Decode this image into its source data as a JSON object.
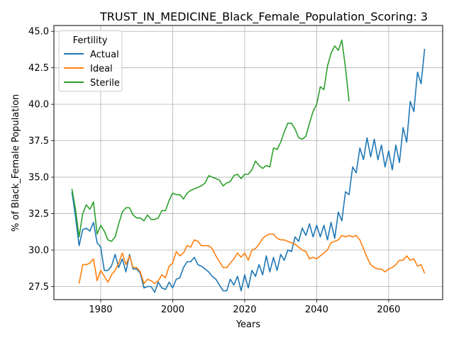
{
  "chart_data": {
    "type": "line",
    "title": "TRUST_IN_MEDICINE_Black_Female_Population_Scoring: 3",
    "xlabel": "Years",
    "ylabel": "% of Black_Female Population",
    "xlim": [
      1967,
      2075
    ],
    "ylim": [
      26.6,
      45.4
    ],
    "xticks": [
      1980,
      2000,
      2020,
      2040,
      2060
    ],
    "yticks": [
      27.5,
      30.0,
      32.5,
      35.0,
      37.5,
      40.0,
      42.5,
      45.0
    ],
    "ytick_labels": [
      "27.5",
      "30.0",
      "32.5",
      "35.0",
      "37.5",
      "40.0",
      "42.5",
      "45.0"
    ],
    "grid": true,
    "legend": {
      "title": "Fertility",
      "placement": "upper-left"
    },
    "series": [
      {
        "name": "Actual",
        "color": "#1f77b4",
        "x": [
          1972,
          1973,
          1974,
          1975,
          1976,
          1977,
          1978,
          1979,
          1980,
          1981,
          1982,
          1983,
          1984,
          1985,
          1986,
          1987,
          1988,
          1989,
          1990,
          1991,
          1992,
          1993,
          1994,
          1995,
          1996,
          1997,
          1998,
          1999,
          2000,
          2001,
          2002,
          2003,
          2004,
          2005,
          2006,
          2007,
          2008,
          2009,
          2010,
          2011,
          2012,
          2013,
          2014,
          2015,
          2016,
          2017,
          2018,
          2019,
          2020,
          2021,
          2022,
          2023,
          2024,
          2025,
          2026,
          2027,
          2028,
          2029,
          2030,
          2031,
          2032,
          2033,
          2034,
          2035,
          2036,
          2037,
          2038,
          2039,
          2040,
          2041,
          2042,
          2043,
          2044,
          2045,
          2046,
          2047,
          2048,
          2049,
          2050,
          2051,
          2052,
          2053,
          2054,
          2055,
          2056,
          2057,
          2058,
          2059,
          2060,
          2061,
          2062,
          2063,
          2064,
          2065,
          2066,
          2067,
          2068,
          2069,
          2070
        ],
        "y": [
          34.0,
          32.3,
          30.3,
          31.4,
          31.5,
          31.3,
          31.9,
          30.5,
          30.2,
          28.6,
          28.6,
          28.9,
          29.7,
          28.8,
          29.4,
          28.5,
          29.7,
          28.7,
          28.7,
          28.4,
          27.4,
          27.5,
          27.5,
          27.1,
          27.8,
          27.4,
          27.3,
          27.8,
          27.4,
          28.0,
          28.1,
          28.8,
          29.2,
          29.2,
          29.5,
          29.0,
          28.9,
          28.7,
          28.5,
          28.2,
          28.0,
          27.6,
          27.2,
          27.2,
          28.0,
          27.6,
          28.2,
          27.2,
          28.3,
          27.4,
          28.6,
          28.2,
          29.0,
          28.3,
          29.6,
          28.5,
          29.5,
          28.6,
          29.7,
          29.3,
          30.0,
          29.9,
          30.9,
          30.6,
          31.5,
          31.0,
          31.8,
          30.9,
          31.7,
          30.9,
          31.7,
          30.7,
          31.9,
          30.8,
          32.6,
          32.0,
          34.0,
          33.8,
          35.7,
          35.3,
          37.0,
          36.2,
          37.7,
          36.4,
          37.6,
          36.2,
          37.2,
          35.7,
          36.8,
          35.5,
          37.2,
          36.0,
          38.4,
          37.4,
          40.2,
          39.5,
          42.2,
          41.4,
          43.8
        ]
      },
      {
        "name": "Ideal",
        "color": "#ff7f0e",
        "x": [
          1974,
          1975,
          1976,
          1977,
          1978,
          1979,
          1980,
          1981,
          1982,
          1983,
          1984,
          1985,
          1986,
          1987,
          1988,
          1989,
          1990,
          1991,
          1992,
          1993,
          1994,
          1995,
          1996,
          1997,
          1998,
          1999,
          2000,
          2001,
          2002,
          2003,
          2004,
          2005,
          2006,
          2007,
          2008,
          2009,
          2010,
          2011,
          2012,
          2013,
          2014,
          2015,
          2016,
          2017,
          2018,
          2019,
          2020,
          2021,
          2022,
          2023,
          2024,
          2025,
          2026,
          2027,
          2028,
          2029,
          2030,
          2031,
          2032,
          2033,
          2034,
          2035,
          2036,
          2037,
          2038,
          2039,
          2040,
          2041,
          2042,
          2043,
          2044,
          2045,
          2046,
          2047,
          2048,
          2049,
          2050,
          2051,
          2052,
          2053,
          2054,
          2055,
          2056,
          2057,
          2058,
          2059,
          2060,
          2061,
          2062,
          2063,
          2064,
          2065,
          2066,
          2067,
          2068,
          2069,
          2070
        ],
        "y": [
          27.7,
          29.0,
          29.0,
          29.1,
          29.4,
          27.9,
          28.6,
          28.2,
          27.8,
          28.3,
          28.6,
          29.1,
          29.8,
          29.0,
          29.6,
          28.8,
          28.8,
          28.5,
          27.7,
          28.0,
          27.9,
          27.7,
          27.9,
          28.3,
          28.1,
          28.9,
          29.1,
          29.9,
          29.6,
          29.8,
          30.3,
          30.2,
          30.7,
          30.6,
          30.3,
          30.3,
          30.3,
          30.1,
          29.6,
          29.2,
          28.8,
          28.8,
          29.1,
          29.4,
          29.8,
          29.5,
          29.8,
          29.3,
          30.0,
          30.1,
          30.4,
          30.8,
          31.0,
          31.1,
          31.1,
          30.8,
          30.7,
          30.7,
          30.6,
          30.5,
          30.4,
          30.2,
          30.0,
          29.9,
          29.4,
          29.5,
          29.4,
          29.6,
          29.8,
          30.0,
          30.5,
          30.6,
          30.7,
          31.0,
          30.9,
          31.0,
          30.9,
          31.0,
          30.7,
          30.1,
          29.5,
          29.0,
          28.8,
          28.7,
          28.7,
          28.5,
          28.7,
          28.8,
          29.0,
          29.3,
          29.3,
          29.6,
          29.3,
          29.4,
          28.9,
          29.0,
          28.4
        ]
      },
      {
        "name": "Sterile",
        "color": "#2ca02c",
        "x": [
          1972,
          1973,
          1974,
          1975,
          1976,
          1977,
          1978,
          1979,
          1980,
          1981,
          1982,
          1983,
          1984,
          1985,
          1986,
          1987,
          1988,
          1989,
          1990,
          1991,
          1992,
          1993,
          1994,
          1995,
          1996,
          1997,
          1998,
          1999,
          2000,
          2001,
          2002,
          2003,
          2004,
          2005,
          2006,
          2007,
          2008,
          2009,
          2010,
          2011,
          2012,
          2013,
          2014,
          2015,
          2016,
          2017,
          2018,
          2019,
          2020,
          2021,
          2022,
          2023,
          2024,
          2025,
          2026,
          2027,
          2028,
          2029,
          2030,
          2031,
          2032,
          2033,
          2034,
          2035,
          2036,
          2037,
          2038,
          2039,
          2040,
          2041,
          2042,
          2043,
          2044,
          2045,
          2046,
          2047,
          2048,
          2049
        ],
        "y": [
          34.2,
          32.8,
          30.9,
          32.5,
          33.1,
          32.8,
          33.3,
          31.1,
          31.7,
          31.3,
          30.7,
          30.6,
          30.9,
          31.8,
          32.6,
          32.9,
          32.9,
          32.4,
          32.2,
          32.2,
          32.0,
          32.4,
          32.1,
          32.1,
          32.2,
          32.7,
          32.7,
          33.4,
          33.9,
          33.8,
          33.8,
          33.5,
          33.9,
          34.1,
          34.2,
          34.3,
          34.4,
          34.6,
          35.1,
          35.0,
          34.9,
          34.8,
          34.4,
          34.6,
          34.7,
          35.1,
          35.2,
          34.9,
          35.2,
          35.2,
          35.5,
          36.1,
          35.8,
          35.6,
          35.8,
          35.7,
          37.0,
          36.9,
          37.4,
          38.1,
          38.7,
          38.7,
          38.3,
          37.7,
          37.6,
          37.8,
          38.7,
          39.5,
          40.0,
          41.2,
          41.0,
          42.6,
          43.5,
          44.0,
          43.7,
          44.4,
          42.5,
          40.2
        ]
      }
    ]
  }
}
